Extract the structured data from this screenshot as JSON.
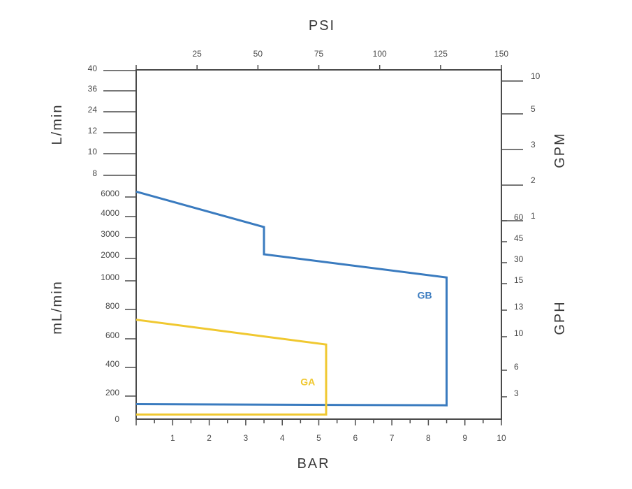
{
  "chart_data": {
    "type": "line",
    "title": "",
    "axes": {
      "bottom": {
        "label": "BAR",
        "range": [
          0,
          10
        ],
        "ticks": [
          "1",
          "2",
          "3",
          "4",
          "5",
          "6",
          "7",
          "8",
          "9",
          "10"
        ]
      },
      "top": {
        "label": "PSI",
        "range": [
          0,
          150
        ],
        "ticks": [
          "25",
          "50",
          "75",
          "100",
          "125",
          "150"
        ]
      },
      "left_upper": {
        "label": "L/min",
        "ticks": [
          "40",
          "36",
          "24",
          "12",
          "10",
          "8"
        ]
      },
      "left_lower": {
        "label": "mL/min",
        "ticks": [
          "6000",
          "4000",
          "3000",
          "2000",
          "1000",
          "800",
          "600",
          "400",
          "200",
          "0"
        ]
      },
      "right_gpm": {
        "label": "GPM",
        "ticks": [
          "10",
          "5",
          "3",
          "2",
          "1"
        ]
      },
      "right_gph": {
        "label": "GPH",
        "ticks": [
          "60",
          "45",
          "30",
          "15",
          "13",
          "10",
          "6",
          "3"
        ]
      }
    },
    "series": [
      {
        "name": "GB",
        "color": "#3a7bbf",
        "points": [
          {
            "bar": 0,
            "flow": "6500 mL/min"
          },
          {
            "bar": 3.5,
            "flow": "3500 mL/min"
          },
          {
            "bar": 3.5,
            "flow": "2200 mL/min"
          },
          {
            "bar": 8.5,
            "flow": "1150 mL/min"
          },
          {
            "bar": 8.5,
            "flow": "120 mL/min"
          },
          {
            "bar": 0,
            "flow": "130 mL/min"
          }
        ]
      },
      {
        "name": "GA",
        "color": "#f0c830",
        "points": [
          {
            "bar": 0,
            "flow": "730 mL/min"
          },
          {
            "bar": 5.2,
            "flow": "560 mL/min"
          },
          {
            "bar": 5.2,
            "flow": "40 mL/min"
          },
          {
            "bar": 0,
            "flow": "40 mL/min"
          }
        ]
      }
    ],
    "grid": false,
    "legend": "inline labels"
  }
}
